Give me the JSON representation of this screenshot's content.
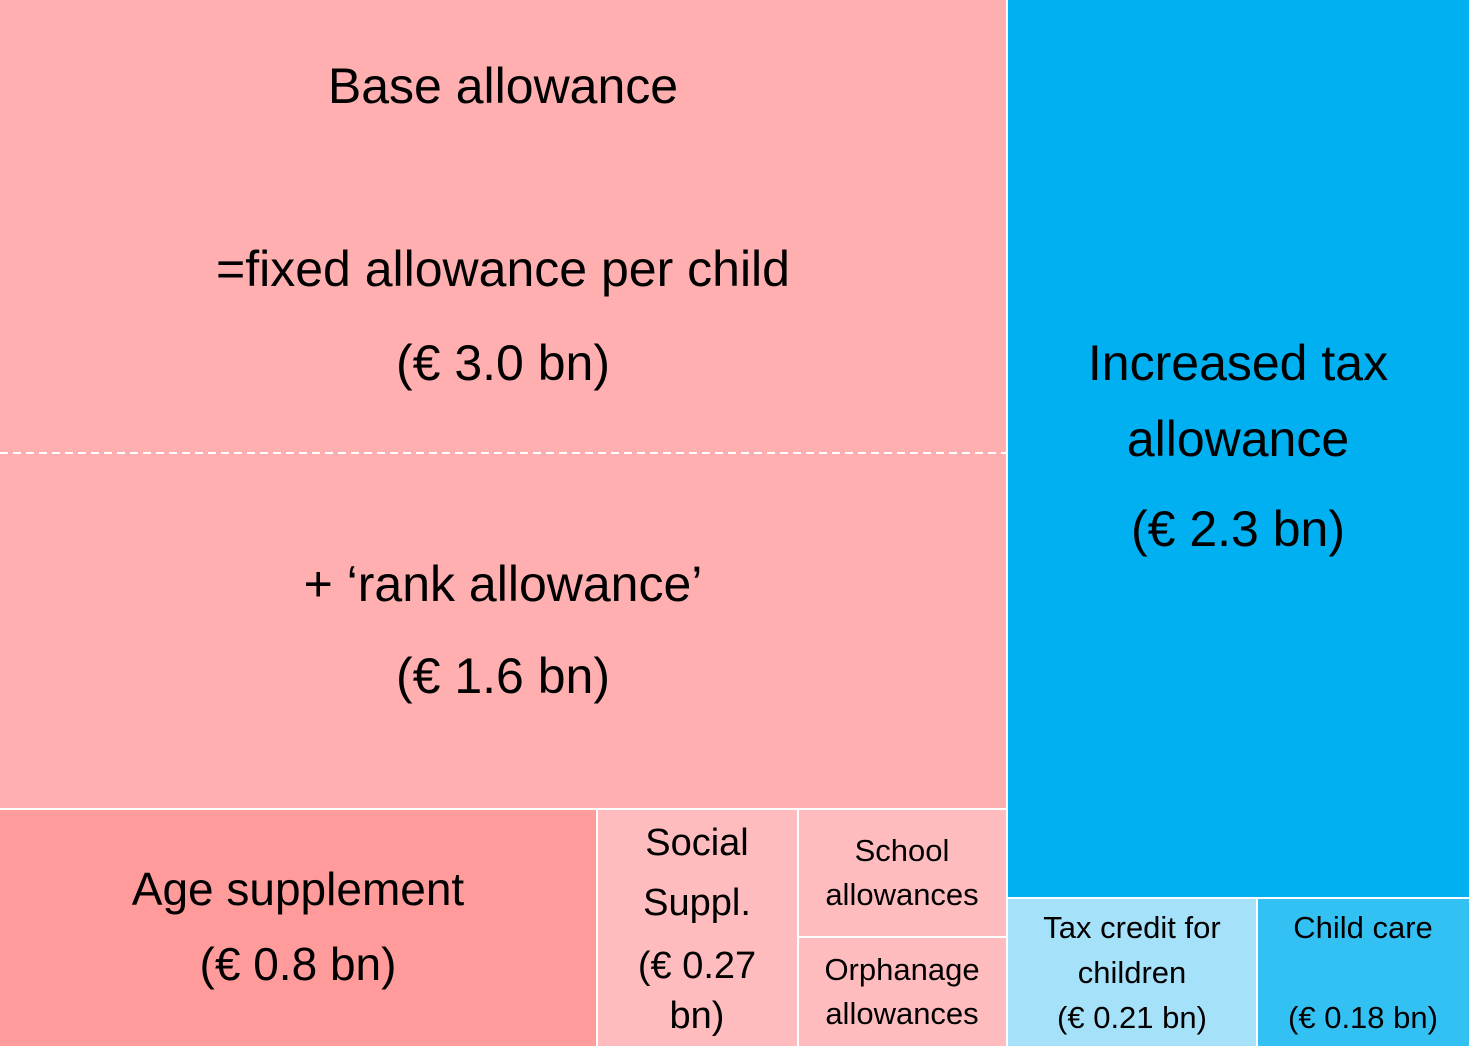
{
  "nodes": [
    {
      "label": [
        "Base allowance",
        "=fixed allowance per child",
        "(€ 3.0 bn)"
      ]
    },
    {
      "label": [
        "+ ‘rank allowance’",
        "(€ 1.6 bn)"
      ]
    },
    {
      "label": [
        "Age supplement",
        "(€ 0.8 bn)"
      ]
    },
    {
      "label": [
        "Social",
        "Suppl.",
        "(€ 0.27",
        "bn)"
      ]
    },
    {
      "label": [
        "School",
        "allowances"
      ]
    },
    {
      "label": [
        "Orphanage",
        "allowances"
      ]
    },
    {
      "label": [
        "Increased tax",
        "allowance",
        "(€ 2.3 bn)"
      ]
    },
    {
      "label": [
        "Tax credit for",
        "children",
        "(€ 0.21 bn)"
      ]
    },
    {
      "label": [
        "Child care",
        "(€ 0.18 bn)"
      ]
    }
  ]
}
